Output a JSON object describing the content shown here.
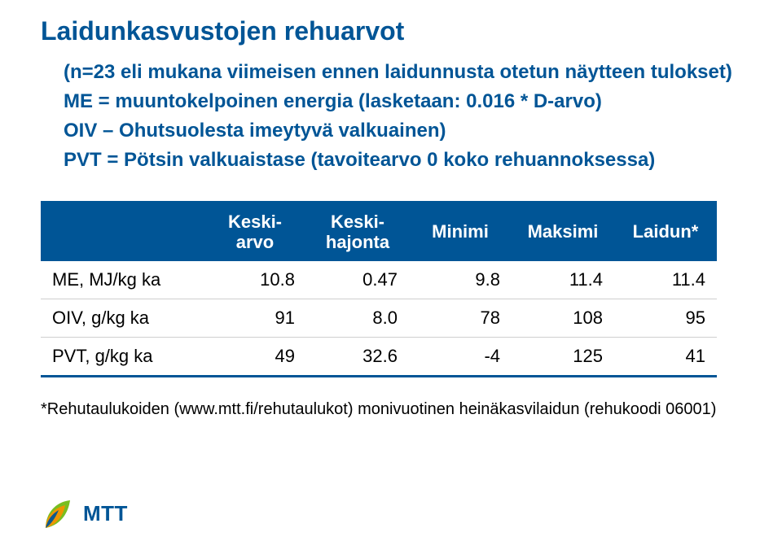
{
  "title": "Laidunkasvustojen rehuarvot",
  "subtitle": [
    "(n=23 eli mukana viimeisen ennen laidunnusta otetun näytteen tulokset)",
    "ME = muuntokelpoinen energia (lasketaan: 0.016 * D-arvo)",
    "OIV – Ohutsuolesta imeytyvä valkuainen)",
    "PVT = Pötsin valkuaistase (tavoitearvo 0 koko rehuannoksessa)"
  ],
  "table": {
    "headers": [
      "",
      "Keski-\narvo",
      "Keski-\nhajonta",
      "Minimi",
      "Maksimi",
      "Laidun*"
    ],
    "rows": [
      {
        "label": "ME, MJ/kg ka",
        "cells": [
          "10.8",
          "0.47",
          "9.8",
          "11.4",
          "11.4"
        ]
      },
      {
        "label": "OIV, g/kg ka",
        "cells": [
          "91",
          "8.0",
          "78",
          "108",
          "95"
        ]
      },
      {
        "label": "PVT, g/kg ka",
        "cells": [
          "49",
          "32.6",
          "-4",
          "125",
          "41"
        ]
      }
    ]
  },
  "footnote": "*Rehutaulukoiden (www.mtt.fi/rehutaulukot) monivuotinen heinäkasvilaidun (rehukoodi 06001)",
  "logo_text": "MTT",
  "colors": {
    "brand": "#005596",
    "logo_green": "#78be20",
    "logo_orange": "#f39200"
  }
}
